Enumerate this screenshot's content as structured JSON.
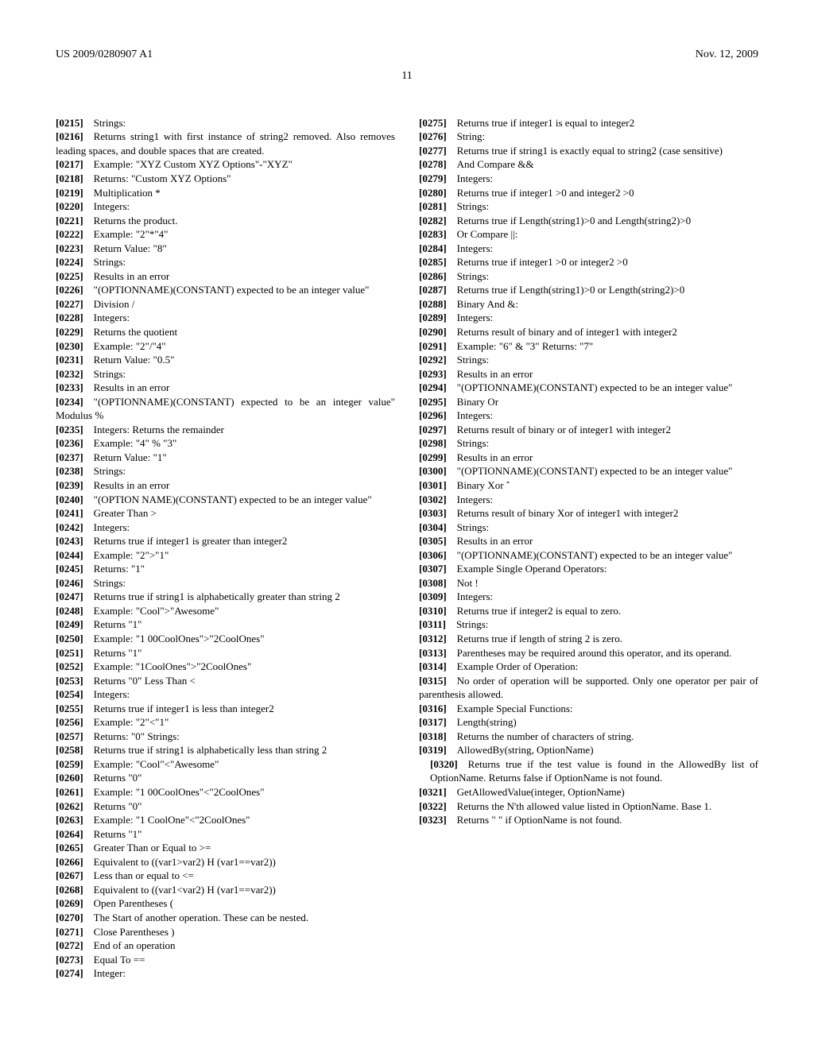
{
  "header": {
    "left": "US 2009/0280907 A1",
    "right": "Nov. 12, 2009"
  },
  "page_number": "11",
  "paras": [
    {
      "n": "[0215]",
      "t": "Strings:"
    },
    {
      "n": "[0216]",
      "t": "Returns string1 with first instance of string2 removed. Also removes leading spaces, and double spaces that are created."
    },
    {
      "n": "[0217]",
      "t": "Example: \"XYZ Custom XYZ Options\"-\"XYZ\""
    },
    {
      "n": "[0218]",
      "t": "Returns: \"Custom XYZ Options\""
    },
    {
      "n": "[0219]",
      "t": "Multiplication *"
    },
    {
      "n": "[0220]",
      "t": "Integers:"
    },
    {
      "n": "[0221]",
      "t": "Returns the product."
    },
    {
      "n": "[0222]",
      "t": "Example: \"2\"*\"4\""
    },
    {
      "n": "[0223]",
      "t": "Return Value: \"8\""
    },
    {
      "n": "[0224]",
      "t": "Strings:"
    },
    {
      "n": "[0225]",
      "t": "Results in an error"
    },
    {
      "n": "[0226]",
      "t": "\"(OPTIONNAME)(CONSTANT) expected to be an integer value\""
    },
    {
      "n": "[0227]",
      "t": "Division /"
    },
    {
      "n": "[0228]",
      "t": "Integers:"
    },
    {
      "n": "[0229]",
      "t": "Returns the quotient"
    },
    {
      "n": "[0230]",
      "t": "Example: \"2\"/\"4\""
    },
    {
      "n": "[0231]",
      "t": "Return Value: \"0.5\""
    },
    {
      "n": "[0232]",
      "t": "Strings:"
    },
    {
      "n": "[0233]",
      "t": "Results in an error"
    },
    {
      "n": "[0234]",
      "t": "\"(OPTIONNAME)(CONSTANT) expected to be an integer value\" Modulus %"
    },
    {
      "n": "[0235]",
      "t": "Integers: Returns the remainder"
    },
    {
      "n": "[0236]",
      "t": "Example: \"4\" % \"3\""
    },
    {
      "n": "[0237]",
      "t": "Return Value: \"1\""
    },
    {
      "n": "[0238]",
      "t": "Strings:"
    },
    {
      "n": "[0239]",
      "t": "Results in an error"
    },
    {
      "n": "[0240]",
      "t": "\"(OPTION NAME)(CONSTANT) expected to be an integer value\""
    },
    {
      "n": "[0241]",
      "t": "Greater Than >"
    },
    {
      "n": "[0242]",
      "t": "Integers:"
    },
    {
      "n": "[0243]",
      "t": "Returns true if integer1 is greater than integer2"
    },
    {
      "n": "[0244]",
      "t": "Example: \"2\">\"1\""
    },
    {
      "n": "[0245]",
      "t": "Returns: \"1\""
    },
    {
      "n": "[0246]",
      "t": "Strings:"
    },
    {
      "n": "[0247]",
      "t": "Returns true if string1 is alphabetically greater than string 2"
    },
    {
      "n": "[0248]",
      "t": "Example: \"Cool\">\"Awesome\""
    },
    {
      "n": "[0249]",
      "t": "Returns \"1\""
    },
    {
      "n": "[0250]",
      "t": "Example: \"1 00CoolOnes\">\"2CoolOnes\""
    },
    {
      "n": "[0251]",
      "t": "Returns \"1\""
    },
    {
      "n": "[0252]",
      "t": "Example: \"1CoolOnes\">\"2CoolOnes\""
    },
    {
      "n": "[0253]",
      "t": "Returns \"0\" Less Than <"
    },
    {
      "n": "[0254]",
      "t": "Integers:"
    },
    {
      "n": "[0255]",
      "t": "Returns true if integer1 is less than integer2"
    },
    {
      "n": "[0256]",
      "t": "Example: \"2\"<\"1\""
    },
    {
      "n": "[0257]",
      "t": "Returns: \"0\" Strings:"
    },
    {
      "n": "[0258]",
      "t": "Returns true if string1 is alphabetically less than string 2"
    },
    {
      "n": "[0259]",
      "t": "Example: \"Cool\"<\"Awesome\""
    },
    {
      "n": "[0260]",
      "t": "Returns \"0\""
    },
    {
      "n": "[0261]",
      "t": "Example: \"1 00CoolOnes\"<\"2CoolOnes\""
    },
    {
      "n": "[0262]",
      "t": "Returns \"0\""
    },
    {
      "n": "[0263]",
      "t": "Example: \"1 CoolOne\"<\"2CoolOnes\""
    },
    {
      "n": "[0264]",
      "t": "Returns \"1\""
    },
    {
      "n": "[0265]",
      "t": "Greater Than or Equal to >="
    },
    {
      "n": "[0266]",
      "t": "Equivalent to ((var1>var2) H (var1==var2))"
    },
    {
      "n": "[0267]",
      "t": "Less than or equal to <="
    },
    {
      "n": "[0268]",
      "t": "Equivalent to ((var1<var2) H (var1==var2))"
    },
    {
      "n": "[0269]",
      "t": "Open Parentheses ("
    },
    {
      "n": "[0270]",
      "t": "The Start of another operation. These can be nested."
    },
    {
      "n": "[0271]",
      "t": "Close Parentheses )"
    },
    {
      "n": "[0272]",
      "t": "End of an operation"
    },
    {
      "n": "[0273]",
      "t": "Equal To =="
    },
    {
      "n": "[0274]",
      "t": "Integer:"
    },
    {
      "n": "[0275]",
      "t": "Returns true if integer1 is equal to integer2"
    },
    {
      "n": "[0276]",
      "t": "String:"
    },
    {
      "n": "[0277]",
      "t": "Returns true if string1 is exactly equal to string2 (case sensitive)"
    },
    {
      "n": "[0278]",
      "t": "And Compare &&"
    },
    {
      "n": "[0279]",
      "t": "Integers:"
    },
    {
      "n": "[0280]",
      "t": "Returns true if integer1 >0 and integer2 >0"
    },
    {
      "n": "[0281]",
      "t": "Strings:"
    },
    {
      "n": "[0282]",
      "t": "Returns true if Length(string1)>0 and Length(string2)>0"
    },
    {
      "n": "[0283]",
      "t": "Or Compare ||:"
    },
    {
      "n": "[0284]",
      "t": "Integers:"
    },
    {
      "n": "[0285]",
      "t": "Returns true if integer1 >0 or integer2 >0"
    },
    {
      "n": "[0286]",
      "t": "Strings:"
    },
    {
      "n": "[0287]",
      "t": "Returns true if Length(string1)>0 or Length(string2)>0"
    },
    {
      "n": "[0288]",
      "t": "Binary And &:"
    },
    {
      "n": "[0289]",
      "t": "Integers:"
    },
    {
      "n": "[0290]",
      "t": "Returns result of binary and of integer1 with integer2"
    },
    {
      "n": "[0291]",
      "t": "Example: \"6\" & \"3\" Returns: \"7\""
    },
    {
      "n": "[0292]",
      "t": "Strings:"
    },
    {
      "n": "[0293]",
      "t": "Results in an error"
    },
    {
      "n": "[0294]",
      "t": "\"(OPTIONNAME)(CONSTANT) expected to be an integer value\""
    },
    {
      "n": "[0295]",
      "t": "Binary Or"
    },
    {
      "n": "[0296]",
      "t": "Integers:"
    },
    {
      "n": "[0297]",
      "t": "Returns result of binary or of integer1 with integer2"
    },
    {
      "n": "[0298]",
      "t": "Strings:"
    },
    {
      "n": "[0299]",
      "t": "Results in an error"
    },
    {
      "n": "[0300]",
      "t": "\"(OPTIONNAME)(CONSTANT) expected to be an integer value\""
    },
    {
      "n": "[0301]",
      "t": "Binary Xor ˆ"
    },
    {
      "n": "[0302]",
      "t": "Integers:"
    },
    {
      "n": "[0303]",
      "t": "Returns result of binary Xor of integer1 with integer2"
    },
    {
      "n": "[0304]",
      "t": "Strings:"
    },
    {
      "n": "[0305]",
      "t": "Results in an error"
    },
    {
      "n": "[0306]",
      "t": "\"(OPTIONNAME)(CONSTANT) expected to be an integer value\""
    },
    {
      "n": "[0307]",
      "t": "Example Single Operand Operators:"
    },
    {
      "n": "[0308]",
      "t": "Not !"
    },
    {
      "n": "[0309]",
      "t": "Integers:"
    },
    {
      "n": "[0310]",
      "t": "Returns true if integer2 is equal to zero."
    },
    {
      "n": "[0311]",
      "t": "Strings:"
    },
    {
      "n": "[0312]",
      "t": "Returns true if length of string 2 is zero."
    },
    {
      "n": "[0313]",
      "t": "Parentheses may be required around this operator, and its operand."
    },
    {
      "n": "[0314]",
      "t": "Example Order of Operation:"
    },
    {
      "n": "[0315]",
      "t": "No order of operation will be supported. Only one operator per pair of parenthesis allowed."
    },
    {
      "n": "[0316]",
      "t": "Example Special Functions:"
    },
    {
      "n": "[0317]",
      "t": "Length(string)"
    },
    {
      "n": "[0318]",
      "t": "Returns the number of characters of string."
    },
    {
      "n": "[0319]",
      "t": "AllowedBy(string, OptionName)"
    },
    {
      "n": "[0320]",
      "t": "Returns true if the test value is found in the AllowedBy list of OptionName. Returns false if OptionName is not found.",
      "indent": true
    },
    {
      "n": "[0321]",
      "t": "GetAllowedValue(integer, OptionName)"
    },
    {
      "n": "[0322]",
      "t": "Returns the N'th allowed value listed in OptionName. Base 1."
    },
    {
      "n": "[0323]",
      "t": "Returns \" \" if OptionName is not found."
    }
  ]
}
